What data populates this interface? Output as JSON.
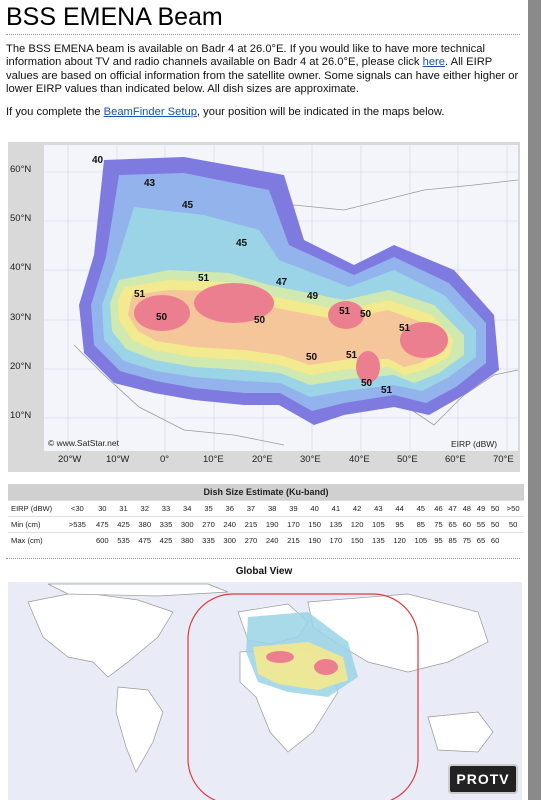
{
  "title": "BSS EMENA Beam",
  "intro": {
    "p1_a": "The BSS EMENA beam is available on Badr 4 at 26.0°E. If you would like to have more technical information about TV and radio channels available on Badr 4 at 26.0°E, please click ",
    "p1_link": "here",
    "p1_b": ". All EIRP values are based on official information from the satellite owner. Some signals can have either higher or lower EIRP values than indicated below. All dish sizes are approximate.",
    "p2_a": "If you complete the ",
    "p2_link": "BeamFinder Setup",
    "p2_b": ", your position will be indicated in the maps below."
  },
  "beam_map": {
    "lat_labels": [
      "60°N",
      "50°N",
      "40°N",
      "30°N",
      "20°N",
      "10°N"
    ],
    "lon_labels": [
      "20°W",
      "10°W",
      "0°",
      "10°E",
      "20°E",
      "30°E",
      "40°E",
      "50°E",
      "60°E",
      "70°E"
    ],
    "contour_labels": [
      "40",
      "43",
      "45",
      "45",
      "47",
      "49",
      "51",
      "51",
      "50",
      "50",
      "51",
      "50",
      "51",
      "50",
      "51",
      "50",
      "51"
    ],
    "copyright": "© www.SatStar.net",
    "unit_label": "EIRP (dBW)"
  },
  "dish_table": {
    "title": "Dish Size Estimate (Ku-band)",
    "rows": [
      {
        "label": "EIRP (dBW)",
        "values": [
          "<30",
          "30",
          "31",
          "32",
          "33",
          "34",
          "35",
          "36",
          "37",
          "38",
          "39",
          "40",
          "41",
          "42",
          "43",
          "44",
          "45",
          "46",
          "47",
          "48",
          "49",
          "50",
          ">50"
        ]
      },
      {
        "label": "Min (cm)",
        "values": [
          ">535",
          "475",
          "425",
          "380",
          "335",
          "300",
          "270",
          "240",
          "215",
          "190",
          "170",
          "150",
          "135",
          "120",
          "105",
          "95",
          "85",
          "75",
          "65",
          "60",
          "55",
          "50",
          "50"
        ]
      },
      {
        "label": "Max (cm)",
        "values": [
          "",
          "600",
          "535",
          "475",
          "425",
          "380",
          "335",
          "300",
          "270",
          "240",
          "215",
          "190",
          "170",
          "150",
          "135",
          "120",
          "105",
          "95",
          "85",
          "75",
          "65",
          "60",
          ""
        ]
      }
    ]
  },
  "global_view": {
    "title": "Global View"
  },
  "watermark": "PROTV",
  "colors": {
    "link": "#1b4fb0",
    "beam_outer": "#7f7ae0",
    "beam_mid": "#9ad4e6",
    "beam_inner": "#f3e98e",
    "beam_core": "#ec7f8f",
    "global_ring": "#dd3b3b"
  }
}
